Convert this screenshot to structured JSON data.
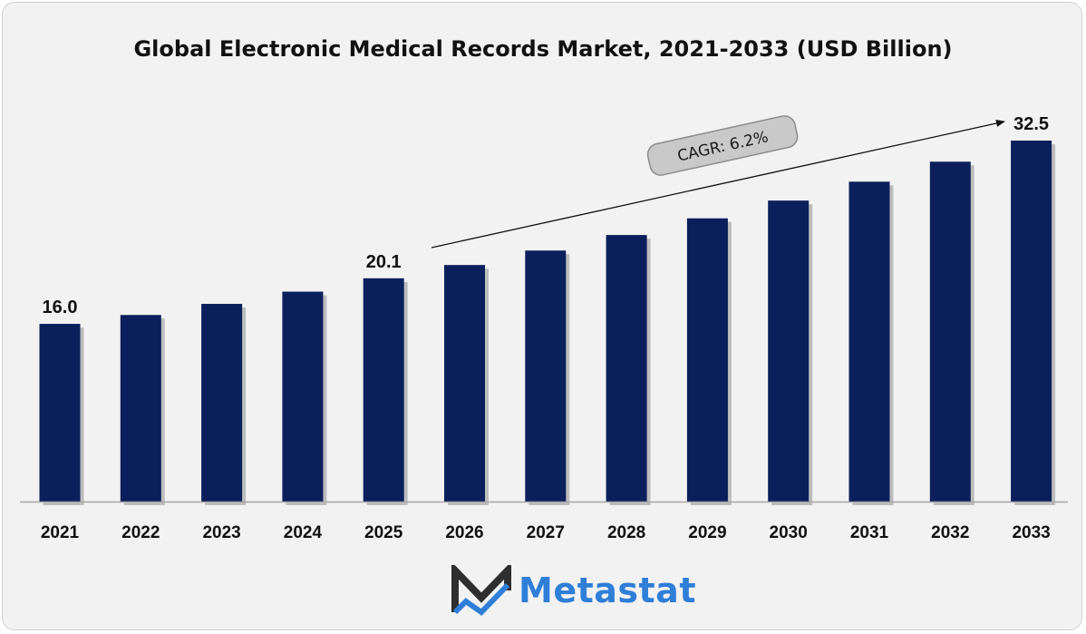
{
  "chart_data": {
    "type": "bar",
    "title": "Global Electronic Medical Records Market, 2021-2033 (USD Billion)",
    "categories": [
      "2021",
      "2022",
      "2023",
      "2024",
      "2025",
      "2026",
      "2027",
      "2028",
      "2029",
      "2030",
      "2031",
      "2032",
      "2033"
    ],
    "values": [
      16.0,
      16.8,
      17.8,
      18.9,
      20.1,
      21.3,
      22.6,
      24.0,
      25.5,
      27.1,
      28.8,
      30.6,
      32.5
    ],
    "data_labels": [
      {
        "category": "2021",
        "text": "16.0"
      },
      {
        "category": "2025",
        "text": "20.1"
      },
      {
        "category": "2033",
        "text": "32.5"
      }
    ],
    "annotation": "CAGR: 6.2%",
    "ylim": [
      0,
      32.5
    ],
    "grid": false,
    "colors": {
      "bar": "#0b1f5c",
      "shadow": "#bdbdbd",
      "axis": "#a6a6a6"
    }
  },
  "brand": {
    "name": "Metastat",
    "colors": {
      "text": "#2f7ed8",
      "mark_dark": "#2e2e2e",
      "mark_blue": "#2f7ed8"
    },
    "icon": "metastat-logo-icon"
  }
}
